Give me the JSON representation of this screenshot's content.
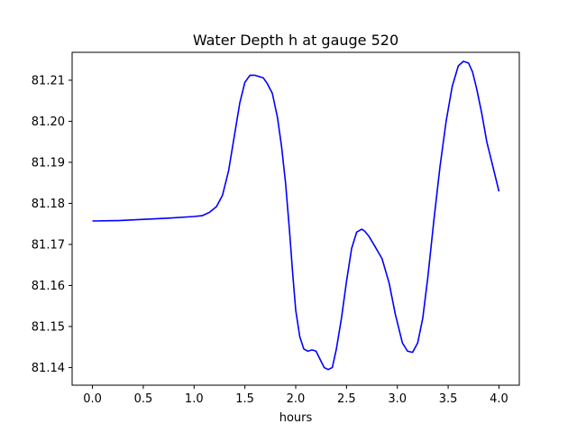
{
  "chart_data": {
    "type": "line",
    "title": "Water Depth h at gauge 520",
    "xlabel": "hours",
    "ylabel": "",
    "xlim": [
      -0.2,
      4.2
    ],
    "ylim": [
      81.1357,
      81.2168
    ],
    "xticks": [
      0.0,
      0.5,
      1.0,
      1.5,
      2.0,
      2.5,
      3.0,
      3.5,
      4.0
    ],
    "xtick_labels": [
      "0.0",
      "0.5",
      "1.0",
      "1.5",
      "2.0",
      "2.5",
      "3.0",
      "3.5",
      "4.0"
    ],
    "yticks": [
      81.14,
      81.15,
      81.16,
      81.17,
      81.18,
      81.19,
      81.2,
      81.21
    ],
    "ytick_labels": [
      "81.14",
      "81.15",
      "81.16",
      "81.17",
      "81.18",
      "81.19",
      "81.20",
      "81.21"
    ],
    "grid": false,
    "series": [
      {
        "color": "#0000ff",
        "x": [
          0.0,
          0.25,
          0.5,
          0.75,
          1.0,
          1.08,
          1.15,
          1.22,
          1.28,
          1.34,
          1.4,
          1.45,
          1.5,
          1.55,
          1.6,
          1.68,
          1.72,
          1.77,
          1.82,
          1.86,
          1.9,
          1.94,
          1.97,
          2.0,
          2.04,
          2.08,
          2.12,
          2.16,
          2.2,
          2.24,
          2.28,
          2.32,
          2.36,
          2.4,
          2.45,
          2.5,
          2.55,
          2.6,
          2.65,
          2.68,
          2.72,
          2.78,
          2.85,
          2.92,
          2.98,
          3.05,
          3.1,
          3.15,
          3.2,
          3.25,
          3.3,
          3.36,
          3.42,
          3.48,
          3.54,
          3.6,
          3.65,
          3.7,
          3.74,
          3.78,
          3.83,
          3.88,
          3.93,
          4.0
        ],
        "y": [
          81.1757,
          81.1758,
          81.1761,
          81.1764,
          81.1768,
          81.177,
          81.1778,
          81.1792,
          81.182,
          81.188,
          81.197,
          81.2045,
          81.2095,
          81.2112,
          81.2112,
          81.2106,
          81.2092,
          81.2068,
          81.201,
          81.194,
          81.185,
          81.173,
          81.163,
          81.154,
          81.1475,
          81.1445,
          81.144,
          81.1443,
          81.144,
          81.142,
          81.14,
          81.1395,
          81.14,
          81.1445,
          81.152,
          81.161,
          81.169,
          81.173,
          81.1737,
          81.1732,
          81.172,
          81.1695,
          81.1665,
          81.1605,
          81.153,
          81.146,
          81.144,
          81.1437,
          81.146,
          81.152,
          81.162,
          81.176,
          81.189,
          81.2,
          81.2085,
          81.2135,
          81.2146,
          81.2142,
          81.212,
          81.208,
          81.202,
          81.195,
          81.19,
          81.1829
        ]
      }
    ]
  }
}
